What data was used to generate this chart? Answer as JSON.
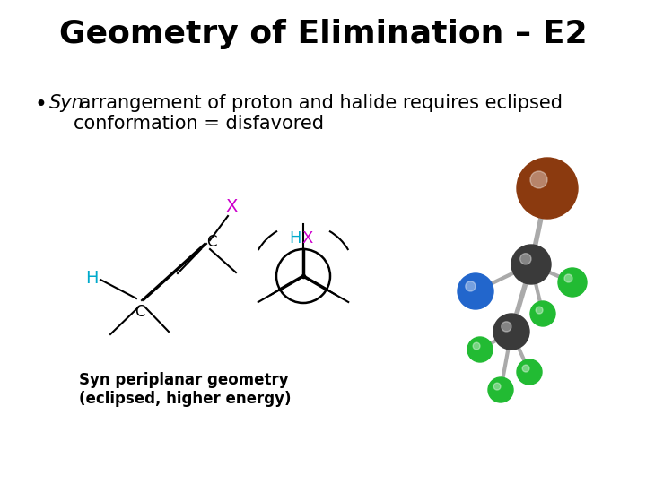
{
  "title": "Geometry of Elimination – E2",
  "title_fontsize": 26,
  "title_fontweight": "bold",
  "bullet_italic": "Syn",
  "bullet_normal": " arrangement of proton and halide requires eclipsed\nconformation = disfavored",
  "bullet_fontsize": 15,
  "caption_text": "Syn periplanar geometry\n(eclipsed, higher energy)",
  "caption_fontsize": 12,
  "bg": "#ffffff",
  "text": "#000000",
  "X_color": "#cc00cc",
  "H_color": "#00aacc",
  "brown": "#8B3A0F",
  "darkgray": "#3a3a3a",
  "green": "#22bb33",
  "blue": "#2266cc",
  "stickgray": "#aaaaaa"
}
